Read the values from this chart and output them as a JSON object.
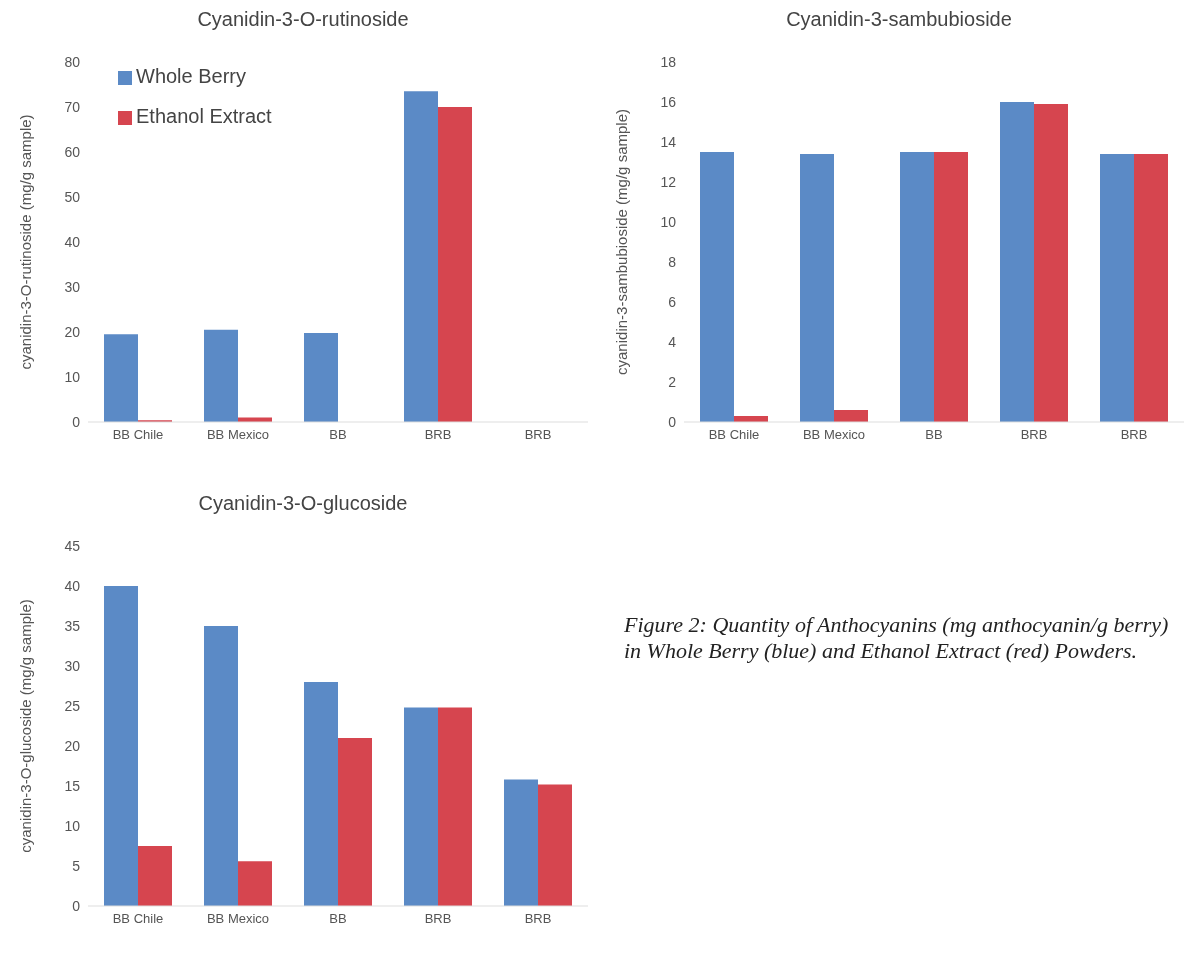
{
  "chart_data": [
    {
      "type": "bar",
      "title": "Cyanidin-3-O-rutinoside",
      "ylabel": "cyanidin-3-O-rutinoside (mg/g sample)",
      "categories": [
        "BB Chile",
        "BB Mexico",
        "BB",
        "BRB",
        "BRB"
      ],
      "series": [
        {
          "name": "Whole Berry",
          "color": "#5b8ac6",
          "values": [
            19.5,
            20.5,
            19.8,
            73.5,
            0
          ]
        },
        {
          "name": "Ethanol Extract",
          "color": "#d6454f",
          "values": [
            0.4,
            1.0,
            0,
            70,
            0
          ]
        }
      ],
      "ylim": [
        0,
        80
      ],
      "yticks": [
        0,
        10,
        20,
        30,
        40,
        50,
        60,
        70,
        80
      ],
      "grid": false,
      "legend": "top left"
    },
    {
      "type": "bar",
      "title": "Cyanidin-3-sambubioside",
      "ylabel": "cyanidin-3-sambubioside (mg/g sample)",
      "categories": [
        "BB Chile",
        "BB Mexico",
        "BB",
        "BRB",
        "BRB"
      ],
      "series": [
        {
          "color": "#5b8ac6",
          "values": [
            13.5,
            13.4,
            13.5,
            16.0,
            13.4
          ]
        },
        {
          "color": "#d6454f",
          "values": [
            0.3,
            0.6,
            13.5,
            15.9,
            13.4
          ]
        }
      ],
      "ylim": [
        0,
        18
      ],
      "yticks": [
        0,
        2,
        4,
        6,
        8,
        10,
        12,
        14,
        16,
        18
      ],
      "grid": false
    },
    {
      "type": "bar",
      "title": "Cyanidin-3-O-glucoside",
      "ylabel": "cyanidin-3-O-glucoside (mg/g sample)",
      "categories": [
        "BB Chile",
        "BB Mexico",
        "BB",
        "BRB",
        "BRB"
      ],
      "series": [
        {
          "color": "#5b8ac6",
          "values": [
            40,
            35,
            28,
            24.8,
            15.8
          ]
        },
        {
          "color": "#d6454f",
          "values": [
            7.5,
            5.6,
            21,
            24.8,
            15.2
          ]
        }
      ],
      "ylim": [
        0,
        45
      ],
      "yticks": [
        0,
        5,
        10,
        15,
        20,
        25,
        30,
        35,
        40,
        45
      ],
      "grid": false,
      "annotations": [
        "Figure 2: Quantity of Anthocyanins (mg anthocyanin/g berry) in Whole Berry (blue) and Ethanol Extract (red) Powders."
      ]
    }
  ]
}
